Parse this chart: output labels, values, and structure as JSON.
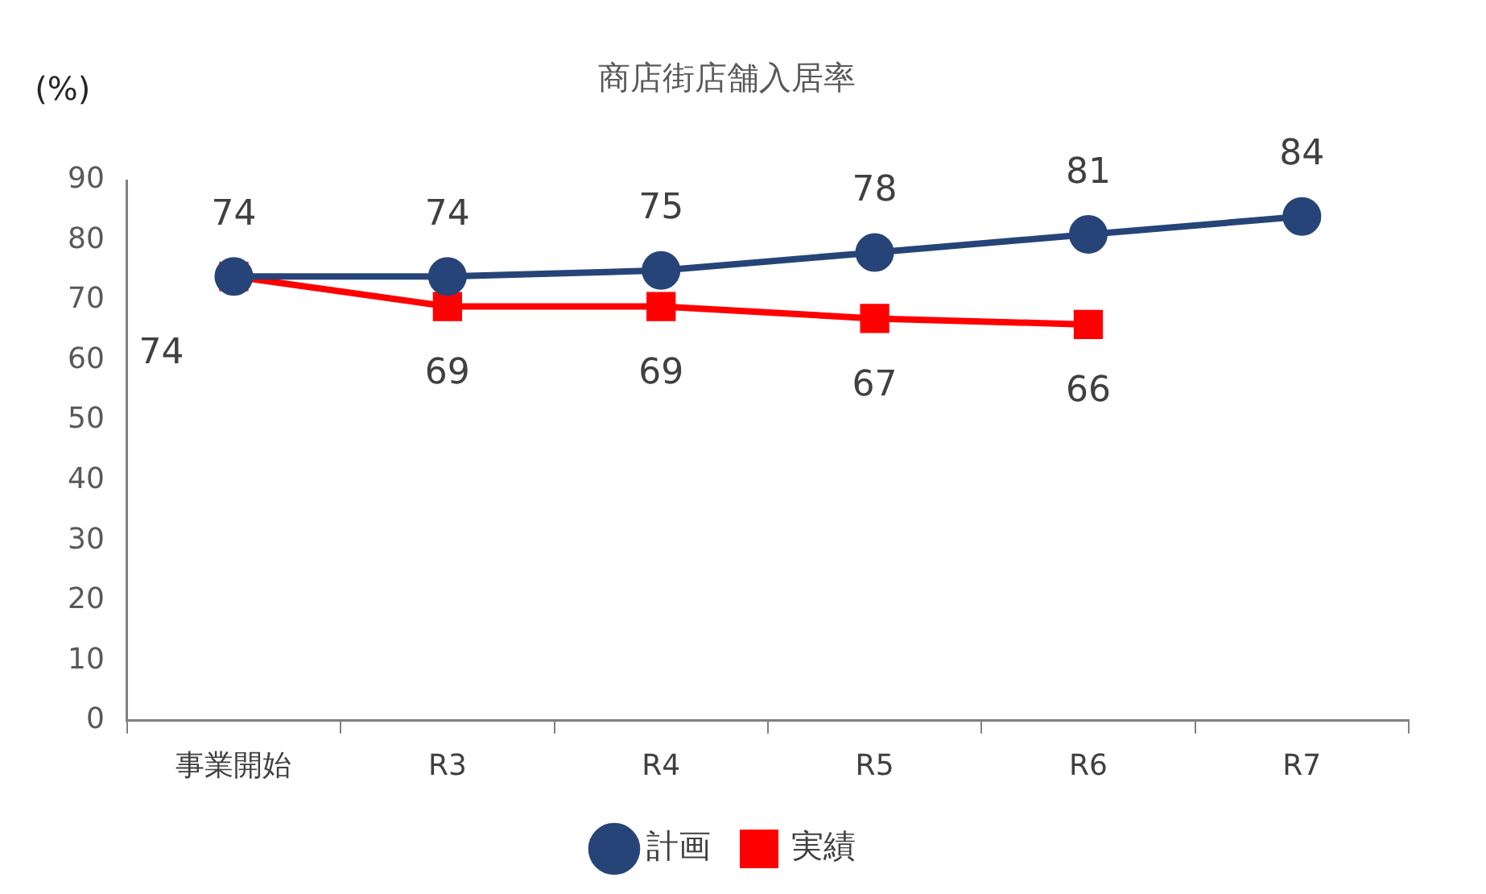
{
  "chart_data": {
    "type": "line",
    "title": "商店街店舗入居率",
    "ylabel": "(%)",
    "categories": [
      "事業開始",
      "R3",
      "R4",
      "R5",
      "R6",
      "R7"
    ],
    "series": [
      {
        "name": "計画",
        "color": "#264478",
        "marker": "circle",
        "values": [
          74,
          74,
          75,
          78,
          81,
          84
        ]
      },
      {
        "name": "実績",
        "color": "#ff0000",
        "marker": "square",
        "values": [
          74,
          69,
          69,
          67,
          66,
          null
        ]
      }
    ],
    "ylim": [
      0,
      90
    ],
    "yticks": [
      0,
      10,
      20,
      30,
      40,
      50,
      60,
      70,
      80,
      90
    ],
    "grid": false,
    "legend": "bottom",
    "data_labels": true
  }
}
